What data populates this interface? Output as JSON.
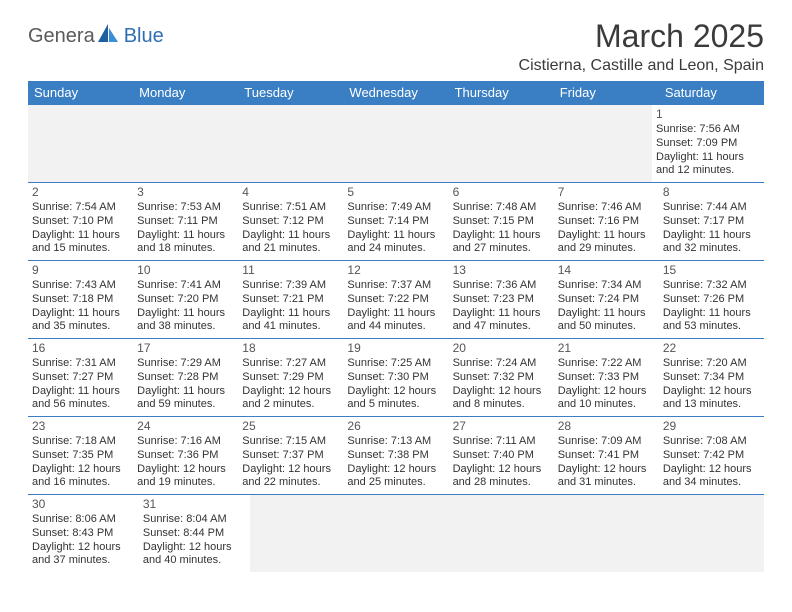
{
  "logo": {
    "part1": "Genera",
    "part2": "Blue"
  },
  "title": "March 2025",
  "location": "Cistierna, Castille and Leon, Spain",
  "colors": {
    "header_bg": "#3a7fc4",
    "header_text": "#ffffff",
    "row_border": "#3a7fc4",
    "empty_bg": "#f2f2f2",
    "logo_gray": "#5a5a5a",
    "logo_blue": "#2f6fb3",
    "text": "#333333"
  },
  "weekdays": [
    "Sunday",
    "Monday",
    "Tuesday",
    "Wednesday",
    "Thursday",
    "Friday",
    "Saturday"
  ],
  "weeks": [
    [
      null,
      null,
      null,
      null,
      null,
      null,
      {
        "n": "1",
        "sunrise": "Sunrise: 7:56 AM",
        "sunset": "Sunset: 7:09 PM",
        "d1": "Daylight: 11 hours",
        "d2": "and 12 minutes."
      }
    ],
    [
      {
        "n": "2",
        "sunrise": "Sunrise: 7:54 AM",
        "sunset": "Sunset: 7:10 PM",
        "d1": "Daylight: 11 hours",
        "d2": "and 15 minutes."
      },
      {
        "n": "3",
        "sunrise": "Sunrise: 7:53 AM",
        "sunset": "Sunset: 7:11 PM",
        "d1": "Daylight: 11 hours",
        "d2": "and 18 minutes."
      },
      {
        "n": "4",
        "sunrise": "Sunrise: 7:51 AM",
        "sunset": "Sunset: 7:12 PM",
        "d1": "Daylight: 11 hours",
        "d2": "and 21 minutes."
      },
      {
        "n": "5",
        "sunrise": "Sunrise: 7:49 AM",
        "sunset": "Sunset: 7:14 PM",
        "d1": "Daylight: 11 hours",
        "d2": "and 24 minutes."
      },
      {
        "n": "6",
        "sunrise": "Sunrise: 7:48 AM",
        "sunset": "Sunset: 7:15 PM",
        "d1": "Daylight: 11 hours",
        "d2": "and 27 minutes."
      },
      {
        "n": "7",
        "sunrise": "Sunrise: 7:46 AM",
        "sunset": "Sunset: 7:16 PM",
        "d1": "Daylight: 11 hours",
        "d2": "and 29 minutes."
      },
      {
        "n": "8",
        "sunrise": "Sunrise: 7:44 AM",
        "sunset": "Sunset: 7:17 PM",
        "d1": "Daylight: 11 hours",
        "d2": "and 32 minutes."
      }
    ],
    [
      {
        "n": "9",
        "sunrise": "Sunrise: 7:43 AM",
        "sunset": "Sunset: 7:18 PM",
        "d1": "Daylight: 11 hours",
        "d2": "and 35 minutes."
      },
      {
        "n": "10",
        "sunrise": "Sunrise: 7:41 AM",
        "sunset": "Sunset: 7:20 PM",
        "d1": "Daylight: 11 hours",
        "d2": "and 38 minutes."
      },
      {
        "n": "11",
        "sunrise": "Sunrise: 7:39 AM",
        "sunset": "Sunset: 7:21 PM",
        "d1": "Daylight: 11 hours",
        "d2": "and 41 minutes."
      },
      {
        "n": "12",
        "sunrise": "Sunrise: 7:37 AM",
        "sunset": "Sunset: 7:22 PM",
        "d1": "Daylight: 11 hours",
        "d2": "and 44 minutes."
      },
      {
        "n": "13",
        "sunrise": "Sunrise: 7:36 AM",
        "sunset": "Sunset: 7:23 PM",
        "d1": "Daylight: 11 hours",
        "d2": "and 47 minutes."
      },
      {
        "n": "14",
        "sunrise": "Sunrise: 7:34 AM",
        "sunset": "Sunset: 7:24 PM",
        "d1": "Daylight: 11 hours",
        "d2": "and 50 minutes."
      },
      {
        "n": "15",
        "sunrise": "Sunrise: 7:32 AM",
        "sunset": "Sunset: 7:26 PM",
        "d1": "Daylight: 11 hours",
        "d2": "and 53 minutes."
      }
    ],
    [
      {
        "n": "16",
        "sunrise": "Sunrise: 7:31 AM",
        "sunset": "Sunset: 7:27 PM",
        "d1": "Daylight: 11 hours",
        "d2": "and 56 minutes."
      },
      {
        "n": "17",
        "sunrise": "Sunrise: 7:29 AM",
        "sunset": "Sunset: 7:28 PM",
        "d1": "Daylight: 11 hours",
        "d2": "and 59 minutes."
      },
      {
        "n": "18",
        "sunrise": "Sunrise: 7:27 AM",
        "sunset": "Sunset: 7:29 PM",
        "d1": "Daylight: 12 hours",
        "d2": "and 2 minutes."
      },
      {
        "n": "19",
        "sunrise": "Sunrise: 7:25 AM",
        "sunset": "Sunset: 7:30 PM",
        "d1": "Daylight: 12 hours",
        "d2": "and 5 minutes."
      },
      {
        "n": "20",
        "sunrise": "Sunrise: 7:24 AM",
        "sunset": "Sunset: 7:32 PM",
        "d1": "Daylight: 12 hours",
        "d2": "and 8 minutes."
      },
      {
        "n": "21",
        "sunrise": "Sunrise: 7:22 AM",
        "sunset": "Sunset: 7:33 PM",
        "d1": "Daylight: 12 hours",
        "d2": "and 10 minutes."
      },
      {
        "n": "22",
        "sunrise": "Sunrise: 7:20 AM",
        "sunset": "Sunset: 7:34 PM",
        "d1": "Daylight: 12 hours",
        "d2": "and 13 minutes."
      }
    ],
    [
      {
        "n": "23",
        "sunrise": "Sunrise: 7:18 AM",
        "sunset": "Sunset: 7:35 PM",
        "d1": "Daylight: 12 hours",
        "d2": "and 16 minutes."
      },
      {
        "n": "24",
        "sunrise": "Sunrise: 7:16 AM",
        "sunset": "Sunset: 7:36 PM",
        "d1": "Daylight: 12 hours",
        "d2": "and 19 minutes."
      },
      {
        "n": "25",
        "sunrise": "Sunrise: 7:15 AM",
        "sunset": "Sunset: 7:37 PM",
        "d1": "Daylight: 12 hours",
        "d2": "and 22 minutes."
      },
      {
        "n": "26",
        "sunrise": "Sunrise: 7:13 AM",
        "sunset": "Sunset: 7:38 PM",
        "d1": "Daylight: 12 hours",
        "d2": "and 25 minutes."
      },
      {
        "n": "27",
        "sunrise": "Sunrise: 7:11 AM",
        "sunset": "Sunset: 7:40 PM",
        "d1": "Daylight: 12 hours",
        "d2": "and 28 minutes."
      },
      {
        "n": "28",
        "sunrise": "Sunrise: 7:09 AM",
        "sunset": "Sunset: 7:41 PM",
        "d1": "Daylight: 12 hours",
        "d2": "and 31 minutes."
      },
      {
        "n": "29",
        "sunrise": "Sunrise: 7:08 AM",
        "sunset": "Sunset: 7:42 PM",
        "d1": "Daylight: 12 hours",
        "d2": "and 34 minutes."
      }
    ],
    [
      {
        "n": "30",
        "sunrise": "Sunrise: 8:06 AM",
        "sunset": "Sunset: 8:43 PM",
        "d1": "Daylight: 12 hours",
        "d2": "and 37 minutes."
      },
      {
        "n": "31",
        "sunrise": "Sunrise: 8:04 AM",
        "sunset": "Sunset: 8:44 PM",
        "d1": "Daylight: 12 hours",
        "d2": "and 40 minutes."
      },
      null,
      null,
      null,
      null,
      null
    ]
  ]
}
